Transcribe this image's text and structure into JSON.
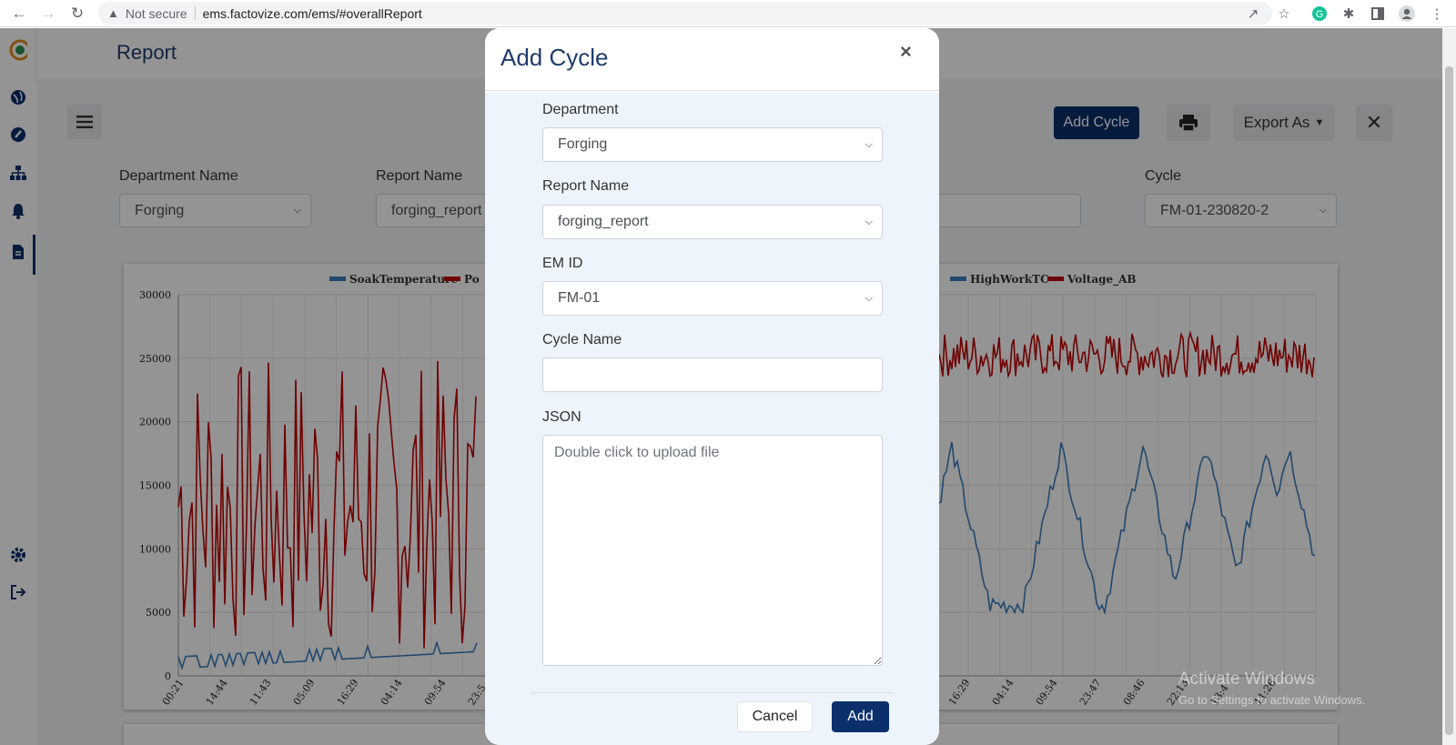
{
  "browser": {
    "security_label": "Not secure",
    "url": "ems.factovize.com/ems/#overallReport"
  },
  "page": {
    "title": "Report",
    "buttons": {
      "add_cycle": "Add Cycle",
      "export_as": "Export As"
    },
    "filters": {
      "department_label": "Department Name",
      "department_value": "Forging",
      "report_label": "Report Name",
      "report_value": "forging_report",
      "cycle_label": "Cycle",
      "cycle_value": "FM-01-230820-2"
    }
  },
  "chart_data": {
    "type": "line",
    "legend": [
      "SoakTemperature",
      "Po",
      "HighWorkTC",
      "Voltage_AB"
    ],
    "y_ticks": [
      "30000",
      "25000",
      "20000",
      "15000",
      "10000",
      "5000",
      "0"
    ],
    "ylim": [
      0,
      30000
    ],
    "x_ticks_left": [
      "00:21",
      "14:44",
      "11:43",
      "05:09",
      "16:29",
      "04:14",
      "09:54",
      "23:5"
    ],
    "x_ticks_right": [
      "16:29",
      "04:14",
      "09:54",
      "23:47",
      "08:46",
      "22:13",
      "13:4",
      "11:26"
    ],
    "series_colors": {
      "SoakTemperature": "#3a7dc0",
      "Po": "#c00000",
      "HighWorkTC": "#3a7dc0",
      "Voltage_AB": "#c00000"
    }
  },
  "modal": {
    "title": "Add Cycle",
    "close_symbol": "×",
    "department_label": "Department",
    "department_value": "Forging",
    "report_label": "Report Name",
    "report_value": "forging_report",
    "emid_label": "EM ID",
    "emid_value": "FM-01",
    "cycle_name_label": "Cycle Name",
    "cycle_name_value": "",
    "json_label": "JSON",
    "json_placeholder": "Double click to upload file",
    "cancel": "Cancel",
    "add": "Add"
  },
  "watermark": {
    "line1": "Activate Windows",
    "line2": "Go to Settings to activate Windows."
  }
}
